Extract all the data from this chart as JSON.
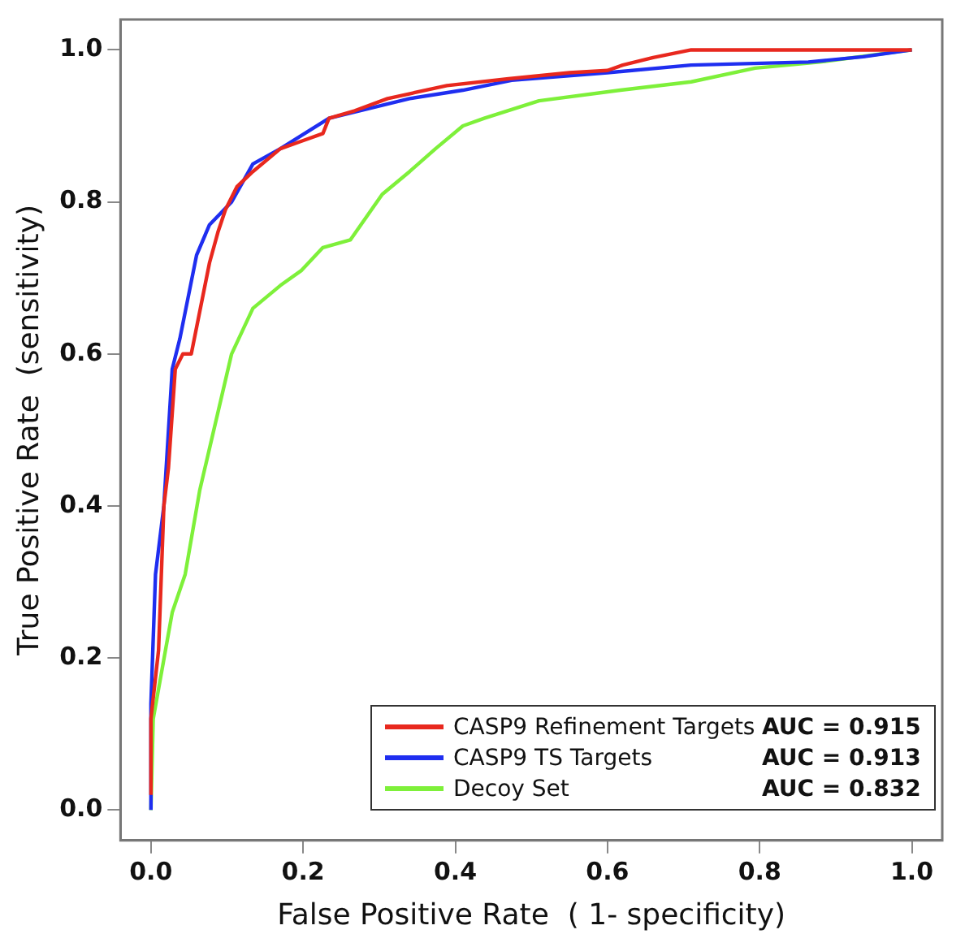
{
  "chart_data": {
    "type": "line",
    "xlabel": "False Positive Rate  ( 1- specificity)",
    "ylabel": "True Positive Rate  (sensitivity)",
    "xlim": [
      -0.04,
      1.04
    ],
    "ylim": [
      -0.04,
      1.04
    ],
    "xticks": [
      {
        "value": 0,
        "label": "0.0"
      },
      {
        "value": 0.2,
        "label": "0.2"
      },
      {
        "value": 0.4,
        "label": "0.4"
      },
      {
        "value": 0.6,
        "label": "0.6"
      },
      {
        "value": 0.8,
        "label": "0.8"
      },
      {
        "value": 1,
        "label": "1.0"
      }
    ],
    "yticks": [
      {
        "value": 0,
        "label": "0.0"
      },
      {
        "value": 0.2,
        "label": "0.2"
      },
      {
        "value": 0.4,
        "label": "0.4"
      },
      {
        "value": 0.6,
        "label": "0.6"
      },
      {
        "value": 0.8,
        "label": "0.8"
      },
      {
        "value": 1,
        "label": "1.0"
      }
    ],
    "grid": false,
    "legend": "bottom right",
    "marker": "none",
    "line_style": "solid",
    "annotations": [
      "AUC = 0.915",
      "AUC = 0.913",
      "AUC = 0.832"
    ],
    "series": [
      {
        "name": "CASP9 Refinement Targets",
        "color": "#e8281e",
        "x": [
          0,
          0,
          0.01,
          0.017,
          0.023,
          0.032,
          0.042,
          0.053,
          0.063,
          0.077,
          0.088,
          0.098,
          0.113,
          0.134,
          0.17,
          0.198,
          0.226,
          0.234,
          0.268,
          0.311,
          0.389,
          0.47,
          0.55,
          0.6,
          0.62,
          0.66,
          0.71,
          0.8,
          0.9,
          1
        ],
        "values": [
          0.02,
          0.12,
          0.21,
          0.4,
          0.45,
          0.58,
          0.6,
          0.6,
          0.65,
          0.72,
          0.76,
          0.79,
          0.82,
          0.84,
          0.87,
          0.88,
          0.89,
          0.91,
          0.92,
          0.936,
          0.953,
          0.962,
          0.97,
          0.973,
          0.98,
          0.99,
          1,
          1,
          1,
          1
        ]
      },
      {
        "name": "CASP9 TS Targets",
        "color": "#1f2ef0",
        "x": [
          0,
          0,
          0.006,
          0.017,
          0.028,
          0.038,
          0.06,
          0.077,
          0.106,
          0.134,
          0.17,
          0.234,
          0.34,
          0.41,
          0.474,
          0.6,
          0.71,
          0.864,
          0.936,
          1
        ],
        "values": [
          0,
          0.14,
          0.31,
          0.4,
          0.58,
          0.62,
          0.73,
          0.77,
          0.8,
          0.85,
          0.87,
          0.91,
          0.936,
          0.947,
          0.96,
          0.97,
          0.98,
          0.984,
          0.991,
          1
        ]
      },
      {
        "name": "Decoy Set",
        "color": "#7ef03a",
        "x": [
          0,
          0.003,
          0.028,
          0.045,
          0.064,
          0.085,
          0.106,
          0.134,
          0.17,
          0.198,
          0.226,
          0.262,
          0.304,
          0.34,
          0.374,
          0.41,
          0.438,
          0.51,
          0.617,
          0.71,
          0.794,
          0.879,
          1
        ],
        "values": [
          0,
          0.12,
          0.26,
          0.31,
          0.42,
          0.51,
          0.6,
          0.66,
          0.69,
          0.71,
          0.74,
          0.75,
          0.81,
          0.84,
          0.87,
          0.9,
          0.91,
          0.933,
          0.947,
          0.958,
          0.976,
          0.984,
          1
        ]
      }
    ]
  }
}
